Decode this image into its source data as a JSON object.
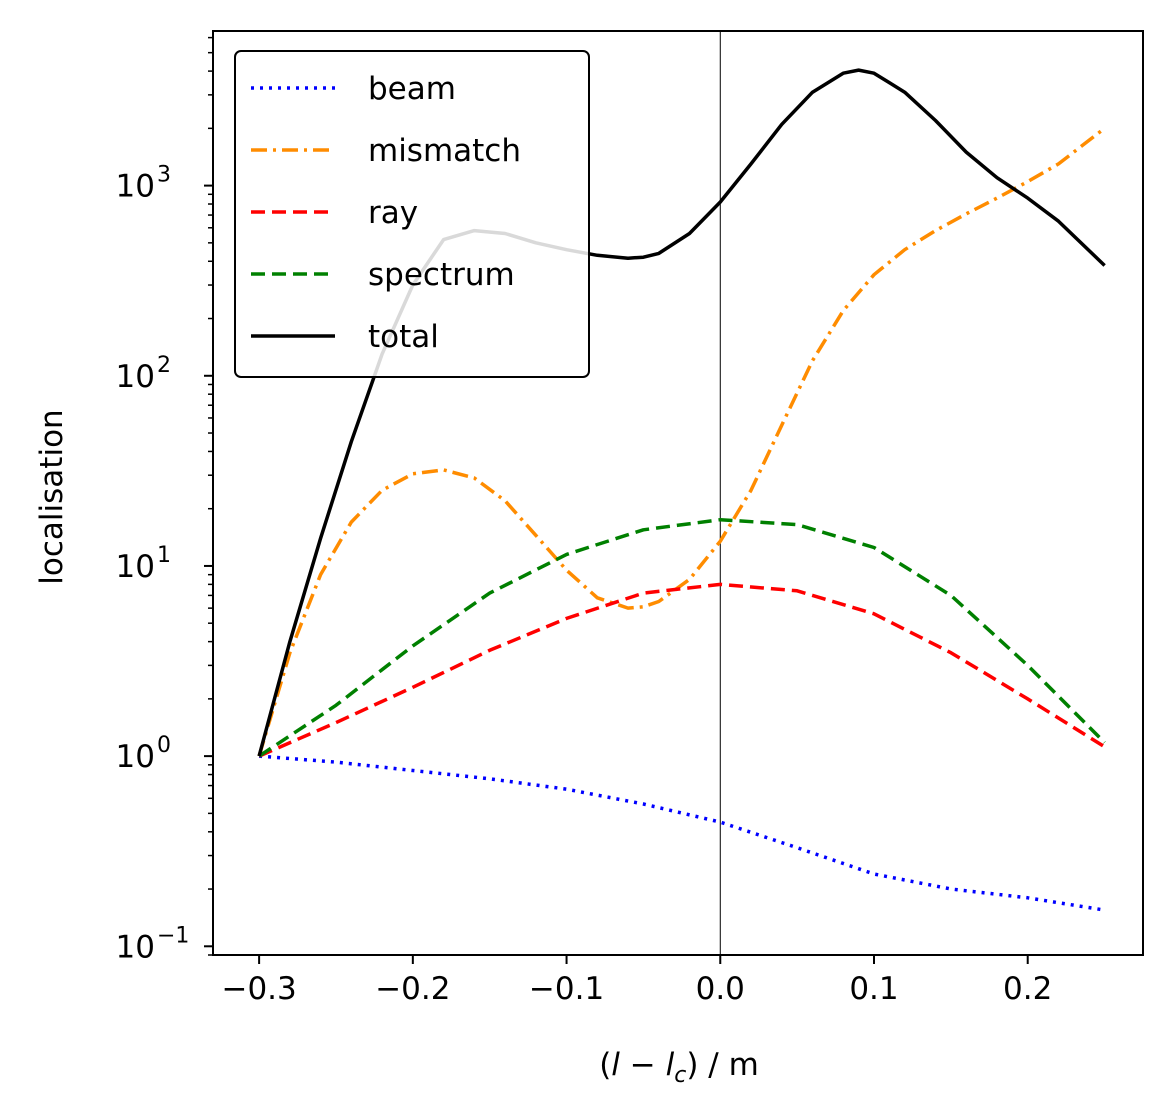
{
  "chart_data": {
    "type": "line",
    "xlabel": "(l − l_c) / m",
    "ylabel": "localisation",
    "yscale": "log",
    "xlim": [
      -0.33,
      0.275
    ],
    "ylim": [
      0.09,
      6500
    ],
    "x_ticks": [
      {
        "value": -0.3,
        "label": "−0.3"
      },
      {
        "value": -0.2,
        "label": "−0.2"
      },
      {
        "value": -0.1,
        "label": "−0.1"
      },
      {
        "value": 0.0,
        "label": "0.0"
      },
      {
        "value": 0.1,
        "label": "0.1"
      },
      {
        "value": 0.2,
        "label": "0.2"
      }
    ],
    "y_ticks": [
      {
        "value": 0.1,
        "base": "10",
        "exp": "−1"
      },
      {
        "value": 1,
        "base": "10",
        "exp": "0"
      },
      {
        "value": 10,
        "base": "10",
        "exp": "1"
      },
      {
        "value": 100,
        "base": "10",
        "exp": "2"
      },
      {
        "value": 1000,
        "base": "10",
        "exp": "3"
      }
    ],
    "vline_x": 0.0,
    "grid": false,
    "legend_position": "upper-left",
    "series": [
      {
        "name": "beam",
        "color": "#0000ff",
        "style": "dotted",
        "x": [
          -0.3,
          -0.25,
          -0.2,
          -0.15,
          -0.1,
          -0.05,
          0.0,
          0.05,
          0.1,
          0.15,
          0.2,
          0.25
        ],
        "y": [
          1.0,
          0.93,
          0.84,
          0.76,
          0.67,
          0.56,
          0.45,
          0.33,
          0.24,
          0.2,
          0.18,
          0.155
        ]
      },
      {
        "name": "mismatch",
        "color": "#ff8c00",
        "style": "dashdot",
        "x": [
          -0.3,
          -0.28,
          -0.26,
          -0.24,
          -0.22,
          -0.2,
          -0.18,
          -0.16,
          -0.14,
          -0.12,
          -0.1,
          -0.08,
          -0.06,
          -0.05,
          -0.04,
          -0.02,
          0.0,
          0.02,
          0.04,
          0.06,
          0.08,
          0.1,
          0.12,
          0.14,
          0.16,
          0.18,
          0.2,
          0.22,
          0.25
        ],
        "y": [
          1.0,
          3.5,
          9.0,
          17.0,
          25.0,
          30.5,
          32.0,
          29.0,
          22.0,
          14.5,
          9.5,
          6.8,
          6.0,
          6.1,
          6.5,
          8.5,
          13.5,
          25.0,
          55.0,
          120.0,
          220.0,
          340.0,
          460.0,
          580.0,
          710.0,
          860.0,
          1050.0,
          1300.0,
          2000.0
        ]
      },
      {
        "name": "ray",
        "color": "#ff0000",
        "style": "dashed",
        "x": [
          -0.3,
          -0.25,
          -0.2,
          -0.15,
          -0.1,
          -0.05,
          0.0,
          0.05,
          0.1,
          0.15,
          0.2,
          0.25
        ],
        "y": [
          1.0,
          1.5,
          2.3,
          3.6,
          5.3,
          7.2,
          8.0,
          7.4,
          5.6,
          3.5,
          2.0,
          1.12
        ]
      },
      {
        "name": "spectrum",
        "color": "#008000",
        "style": "dashed",
        "x": [
          -0.3,
          -0.25,
          -0.2,
          -0.15,
          -0.1,
          -0.05,
          0.0,
          0.05,
          0.1,
          0.15,
          0.2,
          0.25
        ],
        "y": [
          1.0,
          1.85,
          3.8,
          7.2,
          11.5,
          15.5,
          17.5,
          16.5,
          12.5,
          7.0,
          3.0,
          1.18
        ]
      },
      {
        "name": "total",
        "color": "#000000",
        "style": "solid",
        "x": [
          -0.3,
          -0.28,
          -0.26,
          -0.24,
          -0.22,
          -0.2,
          -0.18,
          -0.16,
          -0.14,
          -0.12,
          -0.1,
          -0.08,
          -0.06,
          -0.05,
          -0.04,
          -0.02,
          0.0,
          0.02,
          0.04,
          0.06,
          0.08,
          0.09,
          0.1,
          0.12,
          0.14,
          0.16,
          0.18,
          0.2,
          0.22,
          0.25
        ],
        "y": [
          1.0,
          4.0,
          14.0,
          45.0,
          130.0,
          300.0,
          520.0,
          580.0,
          560.0,
          500.0,
          460.0,
          430.0,
          415.0,
          420.0,
          440.0,
          560.0,
          820.0,
          1300.0,
          2100.0,
          3100.0,
          3900.0,
          4050.0,
          3900.0,
          3100.0,
          2200.0,
          1500.0,
          1100.0,
          860.0,
          650.0,
          380.0
        ]
      }
    ]
  }
}
